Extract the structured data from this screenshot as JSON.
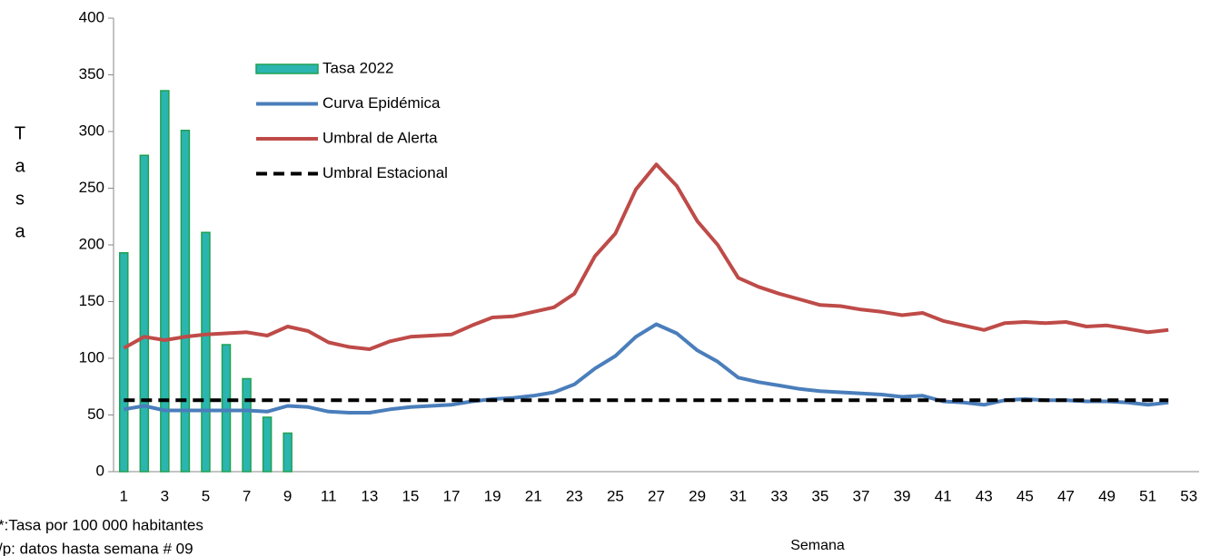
{
  "chart_data": {
    "type": "bar_line",
    "y_label_letters": [
      "T",
      "a",
      "s",
      "a"
    ],
    "x_label": "Semana",
    "footnotes": [
      "*:Tasa por 100 000 habitantes",
      "/p: datos hasta semana # 09"
    ],
    "categories": [
      1,
      null,
      3,
      null,
      5,
      null,
      7,
      null,
      9,
      null,
      11,
      null,
      13,
      null,
      15,
      null,
      17,
      null,
      19,
      null,
      21,
      null,
      23,
      null,
      25,
      null,
      27,
      null,
      29,
      null,
      31,
      null,
      33,
      null,
      35,
      null,
      37,
      null,
      39,
      null,
      41,
      null,
      43,
      null,
      45,
      null,
      47,
      null,
      49,
      null,
      51,
      null,
      53
    ],
    "ylim": [
      0,
      400
    ],
    "yticks": [
      0,
      50,
      100,
      150,
      200,
      250,
      300,
      350,
      400
    ],
    "series": [
      {
        "name": "Tasa 2022",
        "type": "bar",
        "color": "#2bb5b0",
        "stroke": "#20a050",
        "values": [
          193,
          279,
          336,
          301,
          211,
          112,
          82,
          48,
          34,
          null,
          null,
          null,
          null,
          null,
          null,
          null,
          null,
          null,
          null,
          null,
          null,
          null,
          null,
          null,
          null,
          null,
          null,
          null,
          null,
          null,
          null,
          null,
          null,
          null,
          null,
          null,
          null,
          null,
          null,
          null,
          null,
          null,
          null,
          null,
          null,
          null,
          null,
          null,
          null,
          null,
          null,
          null,
          null
        ]
      },
      {
        "name": "Curva Epidémica",
        "type": "line",
        "color": "#4a7ebb",
        "dashed": false,
        "values": [
          55,
          58,
          54,
          54,
          54,
          54,
          54,
          53,
          58,
          57,
          53,
          52,
          52,
          55,
          57,
          58,
          59,
          62,
          64,
          65,
          67,
          70,
          77,
          91,
          102,
          119,
          130,
          122,
          107,
          97,
          83,
          79,
          76,
          73,
          71,
          70,
          69,
          68,
          66,
          67,
          62,
          61,
          59,
          63,
          64,
          63,
          63,
          62,
          62,
          61,
          59,
          61,
          null
        ]
      },
      {
        "name": "Umbral de Alerta",
        "type": "line",
        "color": "#be4b48",
        "dashed": false,
        "values": [
          109,
          119,
          116,
          119,
          121,
          122,
          123,
          120,
          128,
          124,
          114,
          110,
          108,
          115,
          119,
          120,
          121,
          129,
          136,
          137,
          141,
          145,
          157,
          190,
          210,
          249,
          271,
          252,
          221,
          200,
          171,
          163,
          157,
          152,
          147,
          146,
          143,
          141,
          138,
          140,
          133,
          129,
          125,
          131,
          132,
          131,
          132,
          128,
          129,
          126,
          123,
          125,
          null
        ]
      },
      {
        "name": "Umbral Estacional",
        "type": "line",
        "color": "#000000",
        "dashed": true,
        "values": [
          63,
          63,
          63,
          63,
          63,
          63,
          63,
          63,
          63,
          63,
          63,
          63,
          63,
          63,
          63,
          63,
          63,
          63,
          63,
          63,
          63,
          63,
          63,
          63,
          63,
          63,
          63,
          63,
          63,
          63,
          63,
          63,
          63,
          63,
          63,
          63,
          63,
          63,
          63,
          63,
          63,
          63,
          63,
          63,
          63,
          63,
          63,
          63,
          63,
          63,
          63,
          63,
          null
        ]
      }
    ]
  }
}
